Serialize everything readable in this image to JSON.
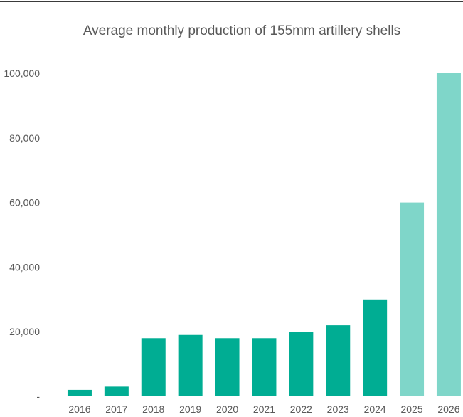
{
  "chart_data": {
    "type": "bar",
    "title": "Average monthly production of 155mm artillery shells",
    "xlabel": "",
    "ylabel": "",
    "categories": [
      "2016",
      "2017",
      "2018",
      "2019",
      "2020",
      "2021",
      "2022",
      "2023",
      "2024",
      "2025",
      "2026"
    ],
    "values": [
      2000,
      3000,
      18000,
      19000,
      18000,
      18000,
      20000,
      22000,
      30000,
      60000,
      100000
    ],
    "ylim": [
      0,
      100000
    ],
    "yticks": [
      0,
      20000,
      40000,
      60000,
      80000,
      100000
    ],
    "ytick_labels": [
      "-",
      "20,000",
      "40,000",
      "60,000",
      "80,000",
      "100,000"
    ],
    "grid": false,
    "legend": "none",
    "colors": {
      "actual": "#00ad93",
      "projected": "#7fd6c9",
      "text": "#595959"
    },
    "projected_from_index": 9
  }
}
